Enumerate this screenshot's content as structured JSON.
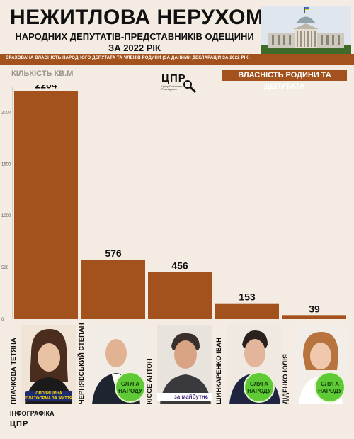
{
  "header": {
    "title": "НЕЖИТЛОВА НЕРУХОМІСТЬ",
    "subtitle_line1": "НАРОДНИХ ДЕПУТАТІВ-ПРЕДСТАВНИКІВ ОДЕЩИНИ",
    "subtitle_line2": "ЗА 2022 РІК",
    "note": "ВРАХОВАНА ВЛАСНІСТЬ НАРОДНОГО ДЕПУТАТА ТА ЧЛЕНІВ РОДИНИ   (ЗА ДАНИМИ ДЕКЛАРАЦІЙ ЗА 2022 РІК)"
  },
  "logo": {
    "name": "ЦПР",
    "small_text": "Центр Політичних Розслідувань"
  },
  "colors": {
    "accent": "#a4521d",
    "background": "#f4ece2",
    "party_green": "#5fc936",
    "platform_blue": "#1d2b6f"
  },
  "chart_data": {
    "type": "bar",
    "ylabel": "КІЛЬКІСТЬ КВ.М",
    "ylim": [
      0,
      2250
    ],
    "yticks": [
      0,
      500,
      1000,
      1500,
      2000
    ],
    "categories": [
      "ПЛАЧКОВА ТЕТЯНА",
      "ЧЕРНЯВСЬКИЙ СТЕПАН",
      "КІССЕ АНТОН",
      "ШИНКАРЕНКО ІВАН",
      "ДІДЕНКО ЮЛІЯ"
    ],
    "series": [
      {
        "name": "ВЛАСНІСТЬ РОДИНИ ТА ДЕПУТАТА",
        "values": [
          2204,
          576,
          456,
          153,
          39
        ]
      }
    ],
    "legend": "top-right",
    "grid": false
  },
  "candidates": [
    {
      "name": "ПЛАЧКОВА ТЕТЯНА",
      "party_label": "ОПОЗИЦІЙНА ПЛАТФОРМА ЗА ЖИТТЯ",
      "party_icon": "platform-logo"
    },
    {
      "name": "ЧЕРНЯВСЬКИЙ СТЕПАН",
      "party_label": "СЛУГА НАРОДУ",
      "party_icon": "sluga-logo"
    },
    {
      "name": "КІССЕ АНТОН",
      "party_label": "за майбутнє",
      "party_icon": "maibutnie-logo"
    },
    {
      "name": "ШИНКАРЕНКО ІВАН",
      "party_label": "СЛУГА НАРОДУ",
      "party_icon": "sluga-logo"
    },
    {
      "name": "ДІДЕНКО ЮЛІЯ",
      "party_label": "СЛУГА НАРОДУ",
      "party_icon": "sluga-logo"
    }
  ],
  "footer": {
    "label": "ІНФОГРАФІКА",
    "brand": "ЦПР"
  }
}
